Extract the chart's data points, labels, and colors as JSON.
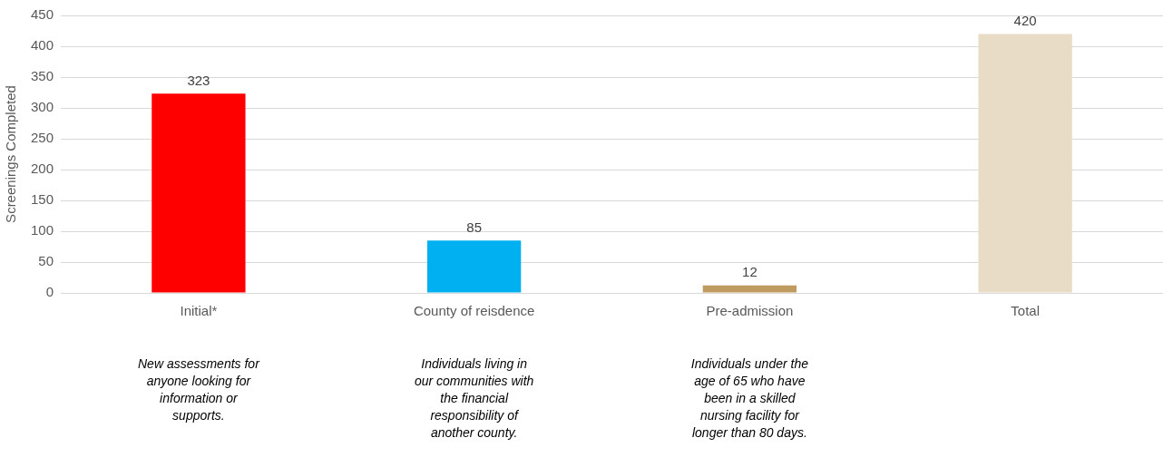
{
  "chart_data": {
    "type": "bar",
    "ylabel": "Screenings Completed",
    "categories": [
      "Initial*",
      "County of reisdence",
      "Pre-admission",
      "Total"
    ],
    "values": [
      323,
      85,
      12,
      420
    ],
    "colors": [
      "#ff0000",
      "#00b0f0",
      "#bf9b5f",
      "#e8dcc6"
    ],
    "ylim": [
      0,
      450
    ],
    "yticks": [
      0,
      50,
      100,
      150,
      200,
      250,
      300,
      350,
      400,
      450
    ],
    "grid": "y",
    "data_labels": true,
    "annotations": [
      "New assessments for anyone looking for information or supports.",
      "Individuals living in our communities with the financial responsibility of another county.",
      "Individuals under the age of 65 who have been in a skilled nursing facility for longer than 80 days."
    ]
  }
}
